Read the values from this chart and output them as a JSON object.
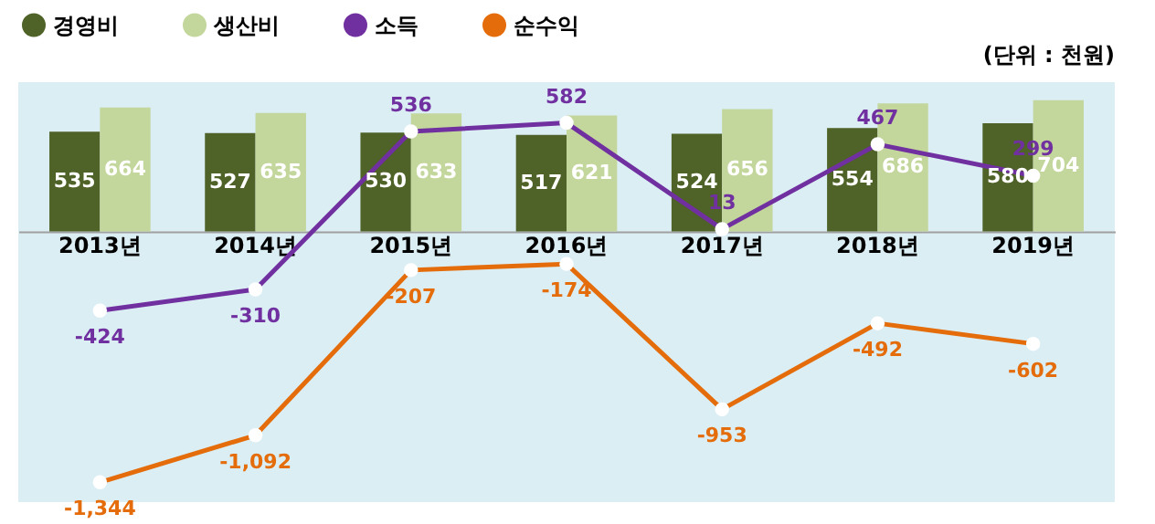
{
  "chart_data": {
    "type": "bar",
    "categories": [
      "2013년",
      "2014년",
      "2015년",
      "2016년",
      "2017년",
      "2018년",
      "2019년"
    ],
    "series": [
      {
        "name": "경영비",
        "color": "#4f6228",
        "values": [
          535,
          527,
          530,
          517,
          524,
          554,
          580
        ],
        "value_labels": [
          "535",
          "527",
          "530",
          "517",
          "524",
          "554",
          "580"
        ]
      },
      {
        "name": "생산비",
        "color": "#c3d69b",
        "values": [
          664,
          635,
          633,
          621,
          656,
          686,
          704
        ],
        "value_labels": [
          "664",
          "635",
          "633",
          "621",
          "656",
          "686",
          "704"
        ]
      },
      {
        "name": "소득",
        "type": "line",
        "color": "#7030a0",
        "values": [
          -424,
          -310,
          536,
          582,
          13,
          467,
          299
        ],
        "value_labels": [
          "-424",
          "-310",
          "536",
          "582",
          "13",
          "467",
          "299"
        ]
      },
      {
        "name": "순수익",
        "type": "line",
        "color": "#e46c0a",
        "values": [
          -1344,
          -1092,
          -207,
          -174,
          -953,
          -492,
          -602
        ],
        "value_labels": [
          "-1,344",
          "-1,092",
          "-207",
          "-174",
          "-953",
          "-492",
          "-602"
        ]
      }
    ],
    "annotations": [
      "(단위 : 천원)"
    ],
    "ylim": [
      -1450,
      800
    ],
    "tick_labels": "x",
    "grid": false,
    "legend": "top",
    "marker": "circle",
    "line_style": "solid"
  }
}
